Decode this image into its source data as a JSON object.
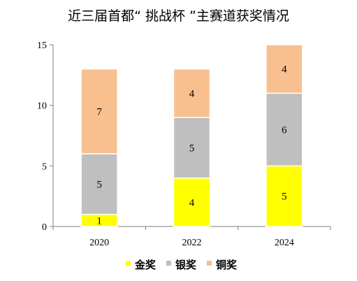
{
  "chart_data": {
    "type": "bar",
    "stacked": true,
    "title": "近三届首都“ 挑战杯 ”主赛道获奖情况",
    "xlabel": "",
    "ylabel": "",
    "categories": [
      "2020",
      "2022",
      "2024"
    ],
    "ylim": [
      0,
      15
    ],
    "yticks": [
      "0",
      "5",
      "10",
      "15"
    ],
    "grid": false,
    "legend_position": "bottom",
    "series": [
      {
        "name": "金奖",
        "values": [
          1,
          4,
          5
        ],
        "color": "#ffff00"
      },
      {
        "name": "银奖",
        "values": [
          5,
          5,
          6
        ],
        "color": "#bfbfbf"
      },
      {
        "name": "铜奖",
        "values": [
          7,
          4,
          4
        ],
        "color": "#f8bf8f"
      }
    ]
  }
}
